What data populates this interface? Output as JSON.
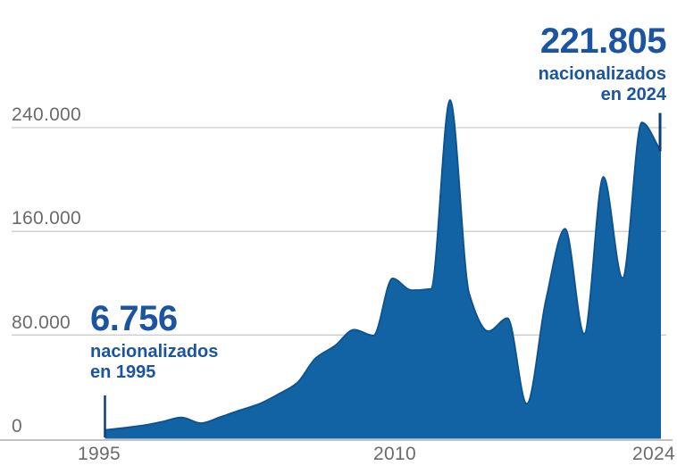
{
  "colors": {
    "background": "#ffffff",
    "area_fill": "#1263a3",
    "area_stroke": "#0d528d",
    "annotation_text": "#1b54a0",
    "marker_line": "#0f3e77",
    "axis_label": "#6b6b6b",
    "gridline": "#cccccc",
    "axis_line": "#c2c2c2"
  },
  "annotations": {
    "start": {
      "value": "6.756",
      "line1": "nacionalizados",
      "line2": "en 1995"
    },
    "end": {
      "value": "221.805",
      "line1": "nacionalizados",
      "line2": "en 2024"
    }
  },
  "chart_data": {
    "type": "area",
    "title": "",
    "xlabel": "",
    "ylabel": "",
    "x": [
      1995,
      1996,
      1997,
      1998,
      1999,
      2000,
      2001,
      2002,
      2003,
      2004,
      2005,
      2006,
      2007,
      2008,
      2009,
      2010,
      2011,
      2012,
      2013,
      2014,
      2015,
      2016,
      2017,
      2018,
      2019,
      2020,
      2021,
      2022,
      2023,
      2024
    ],
    "values": [
      6756,
      8400,
      10300,
      13200,
      16400,
      12000,
      16700,
      21800,
      26600,
      34000,
      42800,
      62300,
      71800,
      84200,
      79600,
      123700,
      114600,
      115600,
      261300,
      112000,
      83000,
      93000,
      27000,
      107000,
      162000,
      81000,
      202000,
      124000,
      244000,
      221805
    ],
    "x_ticks": [
      "1995",
      "2010",
      "2024"
    ],
    "x_tick_years": [
      1995,
      2010,
      2024
    ],
    "y_ticks": [
      "240.000",
      "160.000",
      "80.000",
      "0"
    ],
    "y_tick_values": [
      240000,
      160000,
      80000,
      0
    ],
    "xlim": [
      1995,
      2024
    ],
    "ylim": [
      0,
      240000
    ],
    "grid": true,
    "legend": false,
    "annotated_points": [
      {
        "year": 1995,
        "value": 6756
      },
      {
        "year": 2024,
        "value": 221805
      }
    ]
  }
}
